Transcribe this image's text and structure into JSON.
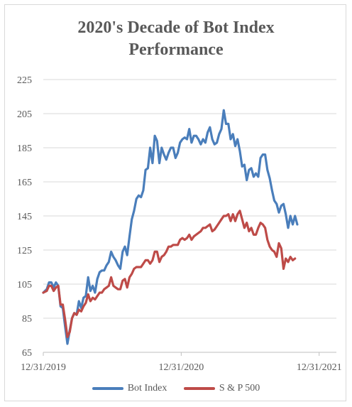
{
  "chart_data": {
    "type": "line",
    "title_lines": [
      "2020's Decade of Bot Index",
      "Performance"
    ],
    "xlabel": "",
    "ylabel": "",
    "ylim": [
      65,
      225
    ],
    "yticks": [
      65,
      85,
      105,
      125,
      145,
      165,
      185,
      205,
      225
    ],
    "xlim": [
      0,
      25.5
    ],
    "xticks": [
      {
        "value": 0,
        "label": "12/31/2019"
      },
      {
        "value": 12,
        "label": "12/31/2020"
      },
      {
        "value": 24,
        "label": "12/31/2021"
      }
    ],
    "grid": true,
    "legend_position": "bottom",
    "series": [
      {
        "name": "Bot Index",
        "color": "#4a7ebb",
        "points": [
          [
            0,
            100
          ],
          [
            0.3,
            102
          ],
          [
            0.5,
            106
          ],
          [
            0.7,
            106
          ],
          [
            0.9,
            103
          ],
          [
            1.1,
            106
          ],
          [
            1.3,
            104
          ],
          [
            1.5,
            92
          ],
          [
            1.7,
            91
          ],
          [
            1.9,
            80
          ],
          [
            2.1,
            70
          ],
          [
            2.3,
            78
          ],
          [
            2.5,
            85
          ],
          [
            2.7,
            88
          ],
          [
            2.9,
            87
          ],
          [
            3.1,
            95
          ],
          [
            3.3,
            91
          ],
          [
            3.5,
            97
          ],
          [
            3.7,
            98
          ],
          [
            3.9,
            109
          ],
          [
            4.1,
            101
          ],
          [
            4.3,
            104
          ],
          [
            4.5,
            100
          ],
          [
            4.7,
            108
          ],
          [
            4.9,
            112
          ],
          [
            5.1,
            113
          ],
          [
            5.3,
            113
          ],
          [
            5.5,
            116
          ],
          [
            5.7,
            118
          ],
          [
            5.9,
            124
          ],
          [
            6.1,
            121
          ],
          [
            6.3,
            119
          ],
          [
            6.5,
            116
          ],
          [
            6.7,
            114
          ],
          [
            6.9,
            124
          ],
          [
            7.1,
            127
          ],
          [
            7.3,
            122
          ],
          [
            7.5,
            133
          ],
          [
            7.7,
            143
          ],
          [
            7.9,
            148
          ],
          [
            8.1,
            155
          ],
          [
            8.3,
            157
          ],
          [
            8.5,
            156
          ],
          [
            8.7,
            160
          ],
          [
            8.9,
            172
          ],
          [
            9.1,
            173
          ],
          [
            9.3,
            185
          ],
          [
            9.5,
            176
          ],
          [
            9.7,
            192
          ],
          [
            9.9,
            189
          ],
          [
            10.1,
            176
          ],
          [
            10.3,
            185
          ],
          [
            10.5,
            181
          ],
          [
            10.7,
            178
          ],
          [
            10.9,
            182
          ],
          [
            11.1,
            185
          ],
          [
            11.3,
            185
          ],
          [
            11.5,
            179
          ],
          [
            11.7,
            182
          ],
          [
            11.9,
            188
          ],
          [
            12.1,
            190
          ],
          [
            12.3,
            191
          ],
          [
            12.5,
            190
          ],
          [
            12.7,
            196
          ],
          [
            12.9,
            188
          ],
          [
            13.1,
            192
          ],
          [
            13.3,
            192
          ],
          [
            13.5,
            190
          ],
          [
            13.7,
            187
          ],
          [
            13.9,
            190
          ],
          [
            14.1,
            188
          ],
          [
            14.3,
            194
          ],
          [
            14.5,
            197
          ],
          [
            14.7,
            190
          ],
          [
            14.9,
            187
          ],
          [
            15.1,
            188
          ],
          [
            15.3,
            193
          ],
          [
            15.5,
            196
          ],
          [
            15.7,
            207
          ],
          [
            15.9,
            199
          ],
          [
            16.1,
            199
          ],
          [
            16.3,
            190
          ],
          [
            16.5,
            193
          ],
          [
            16.7,
            186
          ],
          [
            16.9,
            190
          ],
          [
            17.1,
            183
          ],
          [
            17.3,
            174
          ],
          [
            17.5,
            175
          ],
          [
            17.7,
            166
          ],
          [
            17.9,
            172
          ],
          [
            18.1,
            173
          ],
          [
            18.3,
            168
          ],
          [
            18.5,
            170
          ],
          [
            18.7,
            168
          ],
          [
            18.9,
            179
          ],
          [
            19.1,
            181
          ],
          [
            19.3,
            181
          ],
          [
            19.5,
            172
          ],
          [
            19.7,
            167
          ],
          [
            19.9,
            160
          ],
          [
            20.1,
            154
          ],
          [
            20.3,
            152
          ],
          [
            20.5,
            147
          ],
          [
            20.7,
            151
          ],
          [
            20.9,
            152
          ],
          [
            21.1,
            146
          ],
          [
            21.3,
            138
          ],
          [
            21.5,
            145
          ],
          [
            21.7,
            140
          ],
          [
            21.9,
            145
          ],
          [
            22.1,
            140
          ]
        ]
      },
      {
        "name": "S & P 500",
        "color": "#be4b48",
        "points": [
          [
            0,
            100
          ],
          [
            0.3,
            101
          ],
          [
            0.5,
            104
          ],
          [
            0.7,
            104
          ],
          [
            0.9,
            101
          ],
          [
            1.1,
            103
          ],
          [
            1.3,
            104
          ],
          [
            1.5,
            93
          ],
          [
            1.7,
            93
          ],
          [
            1.9,
            84
          ],
          [
            2.1,
            74
          ],
          [
            2.3,
            77
          ],
          [
            2.5,
            85
          ],
          [
            2.7,
            88
          ],
          [
            2.9,
            87
          ],
          [
            3.1,
            90
          ],
          [
            3.3,
            89
          ],
          [
            3.5,
            92
          ],
          [
            3.7,
            94
          ],
          [
            3.9,
            99
          ],
          [
            4.1,
            95
          ],
          [
            4.3,
            97
          ],
          [
            4.5,
            96
          ],
          [
            4.7,
            98
          ],
          [
            4.9,
            100
          ],
          [
            5.1,
            100
          ],
          [
            5.3,
            102
          ],
          [
            5.5,
            103
          ],
          [
            5.7,
            104
          ],
          [
            5.9,
            109
          ],
          [
            6.1,
            104
          ],
          [
            6.3,
            103
          ],
          [
            6.5,
            102
          ],
          [
            6.7,
            102
          ],
          [
            6.9,
            107
          ],
          [
            7.1,
            108
          ],
          [
            7.3,
            103
          ],
          [
            7.5,
            109
          ],
          [
            7.7,
            111
          ],
          [
            7.9,
            114
          ],
          [
            8.1,
            115
          ],
          [
            8.3,
            115
          ],
          [
            8.5,
            115
          ],
          [
            8.7,
            117
          ],
          [
            8.9,
            119
          ],
          [
            9.1,
            119
          ],
          [
            9.3,
            117
          ],
          [
            9.5,
            119
          ],
          [
            9.7,
            124
          ],
          [
            9.9,
            124
          ],
          [
            10.1,
            118
          ],
          [
            10.3,
            121
          ],
          [
            10.5,
            122
          ],
          [
            10.7,
            124
          ],
          [
            10.9,
            127
          ],
          [
            11.1,
            127
          ],
          [
            11.3,
            128
          ],
          [
            11.5,
            128
          ],
          [
            11.7,
            128
          ],
          [
            11.9,
            131
          ],
          [
            12.1,
            132
          ],
          [
            12.3,
            131
          ],
          [
            12.5,
            132
          ],
          [
            12.7,
            134
          ],
          [
            12.9,
            131
          ],
          [
            13.1,
            133
          ],
          [
            13.3,
            134
          ],
          [
            13.5,
            135
          ],
          [
            13.7,
            136
          ],
          [
            13.9,
            138
          ],
          [
            14.1,
            138
          ],
          [
            14.3,
            139
          ],
          [
            14.5,
            140
          ],
          [
            14.7,
            136
          ],
          [
            14.9,
            137
          ],
          [
            15.1,
            139
          ],
          [
            15.3,
            141
          ],
          [
            15.5,
            143
          ],
          [
            15.7,
            145
          ],
          [
            15.9,
            145
          ],
          [
            16.1,
            146
          ],
          [
            16.3,
            142
          ],
          [
            16.5,
            146
          ],
          [
            16.7,
            142
          ],
          [
            16.9,
            146
          ],
          [
            17.1,
            148
          ],
          [
            17.3,
            143
          ],
          [
            17.5,
            138
          ],
          [
            17.7,
            141
          ],
          [
            17.9,
            136
          ],
          [
            18.1,
            138
          ],
          [
            18.3,
            134
          ],
          [
            18.5,
            134
          ],
          [
            18.7,
            138
          ],
          [
            18.9,
            141
          ],
          [
            19.1,
            140
          ],
          [
            19.3,
            138
          ],
          [
            19.5,
            131
          ],
          [
            19.7,
            127
          ],
          [
            19.9,
            125
          ],
          [
            20.1,
            124
          ],
          [
            20.3,
            121
          ],
          [
            20.5,
            129
          ],
          [
            20.7,
            126
          ],
          [
            20.9,
            114
          ],
          [
            21.1,
            120
          ],
          [
            21.3,
            118
          ],
          [
            21.5,
            121
          ],
          [
            21.7,
            119
          ],
          [
            21.9,
            120
          ]
        ]
      }
    ]
  }
}
